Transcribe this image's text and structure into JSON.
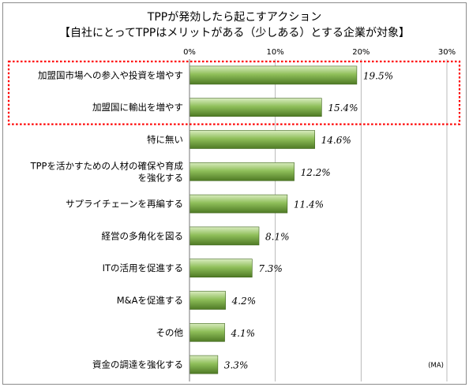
{
  "chart_data": {
    "type": "bar",
    "orientation": "horizontal",
    "title": "TPPが発効したら起こすアクション",
    "subtitle": "【自社にとってTPPはメリットがある（少しある）とする企業が対象】",
    "categories": [
      [
        "加盟国市場への参入や投資を増やす"
      ],
      [
        "加盟国に輸出を増やす"
      ],
      [
        "特に無い"
      ],
      [
        "TPPを活かすための人材の確保や育成",
        "を強化する"
      ],
      [
        "サプライチェーンを再編する"
      ],
      [
        "経営の多角化を図る"
      ],
      [
        "ITの活用を促進する"
      ],
      [
        "M&Aを促進する"
      ],
      [
        "その他"
      ],
      [
        "資金の調達を強化する"
      ]
    ],
    "values": [
      19.5,
      15.4,
      14.6,
      12.2,
      11.4,
      8.1,
      7.3,
      4.2,
      4.1,
      3.3
    ],
    "value_labels": [
      "19.5%",
      "15.4%",
      "14.6%",
      "12.2%",
      "11.4%",
      "8.1%",
      "7.3%",
      "4.2%",
      "4.1%",
      "3.3%"
    ],
    "xlim": [
      0,
      30
    ],
    "ticks": [
      0,
      10,
      20,
      30
    ],
    "tick_labels": [
      "0%",
      "10%",
      "20%",
      "30%"
    ],
    "grid": true,
    "note": "(MA)",
    "highlight": {
      "indices": [
        0,
        1
      ],
      "color": "#ff0000",
      "style": "dotted"
    },
    "colors": {
      "bar_light": "#d9ecc0",
      "bar_mid": "#8fbf5a",
      "bar_dark": "#4f7a25",
      "grid": "#aaaaaa"
    }
  }
}
